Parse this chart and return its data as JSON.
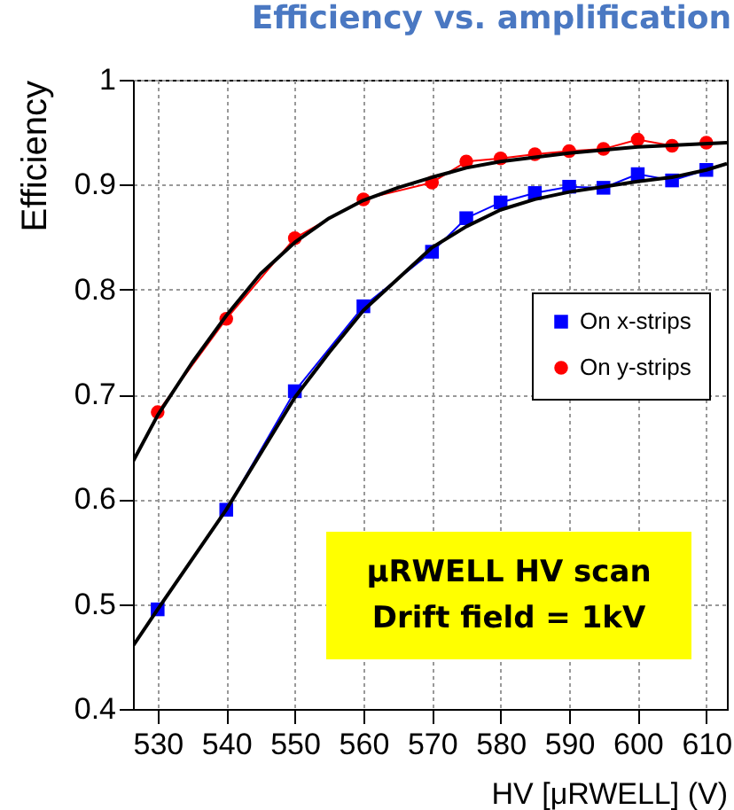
{
  "chart_data": {
    "type": "line",
    "title": "Efficiency vs. amplification",
    "xlabel": "HV [μRWELL] (V)",
    "ylabel": "Efficiency",
    "annotations": [
      "μRWELL HV scan\nDrift field = 1kV"
    ],
    "xlim": [
      526.4,
      613
    ],
    "xticks": [
      530,
      540,
      550,
      560,
      570,
      580,
      590,
      600,
      610
    ],
    "ylim": [
      0.4,
      1
    ],
    "yticks": [
      0.4,
      0.5,
      0.6,
      0.7,
      0.8,
      0.9,
      1
    ],
    "grid": true,
    "legend": "right",
    "series": [
      {
        "name": "On x-strips",
        "color": "#0000ff",
        "marker": "square",
        "x": [
          530,
          540,
          550,
          560,
          570,
          575,
          580,
          585,
          590,
          595,
          600,
          605,
          610
        ],
        "values": [
          0.495,
          0.59,
          0.703,
          0.784,
          0.836,
          0.868,
          0.883,
          0.892,
          0.898,
          0.897,
          0.91,
          0.904,
          0.914
        ]
      },
      {
        "name": "On y-strips",
        "color": "#ff0000",
        "marker": "circle",
        "x": [
          530,
          540,
          550,
          560,
          570,
          575,
          580,
          585,
          590,
          595,
          600,
          605,
          610
        ],
        "values": [
          0.683,
          0.772,
          0.849,
          0.886,
          0.902,
          0.922,
          0.925,
          0.929,
          0.932,
          0.934,
          0.943,
          0.937,
          0.94
        ]
      },
      {
        "type": "line",
        "color": "#000000",
        "marker": "none",
        "x": [
          526.4,
          530,
          535,
          540,
          545,
          550,
          555,
          560,
          565,
          570,
          575,
          580,
          590,
          600,
          613
        ],
        "values": [
          0.636,
          0.68,
          0.73,
          0.775,
          0.815,
          0.845,
          0.868,
          0.885,
          0.897,
          0.907,
          0.916,
          0.922,
          0.93,
          0.936,
          0.94
        ]
      },
      {
        "type": "line",
        "color": "#000000",
        "marker": "none",
        "x": [
          526.4,
          530,
          540,
          550,
          555,
          560,
          565,
          570,
          575,
          580,
          585,
          590,
          595,
          600,
          605,
          610,
          613
        ],
        "values": [
          0.46,
          0.495,
          0.59,
          0.697,
          0.74,
          0.78,
          0.81,
          0.84,
          0.86,
          0.876,
          0.886,
          0.893,
          0.898,
          0.903,
          0.907,
          0.914,
          0.92
        ]
      }
    ]
  }
}
